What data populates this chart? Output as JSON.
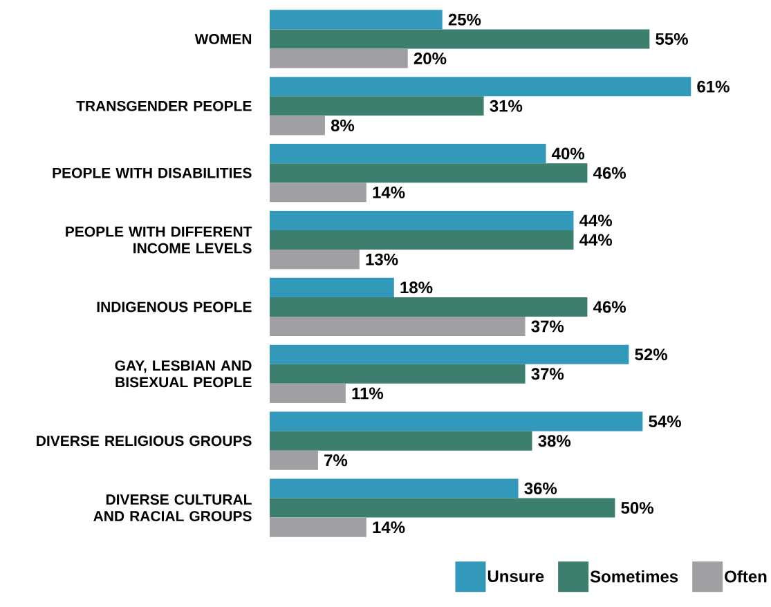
{
  "chart_data": {
    "type": "bar",
    "orientation": "horizontal",
    "legend": "bottom right",
    "categories": [
      "WOMEN",
      "TRANSGENDER PEOPLE",
      "PEOPLE WITH DISABILITIES",
      "PEOPLE WITH DIFFERENT INCOME LEVELS",
      "INDIGENOUS PEOPLE",
      "GAY, LESBIAN AND BISEXUAL PEOPLE",
      "DIVERSE RELIGIOUS GROUPS",
      "DIVERSE CULTURAL AND RACIAL GROUPS"
    ],
    "series": [
      {
        "name": "Unsure",
        "color": "#3399bb",
        "values": [
          25,
          61,
          40,
          44,
          18,
          52,
          54,
          36
        ],
        "value_labels": [
          "25%",
          "61%",
          "40%",
          "44%",
          "18%",
          "52%",
          "54%",
          "36%"
        ]
      },
      {
        "name": "Sometimes",
        "color": "#3d7f6e",
        "values": [
          55,
          31,
          46,
          44,
          46,
          37,
          38,
          50
        ],
        "value_labels": [
          "55%",
          "31%",
          "46%",
          "44%",
          "46%",
          "37%",
          "38%",
          "50%"
        ]
      },
      {
        "name": "Often",
        "color": "#a0a0a4",
        "values": [
          20,
          8,
          14,
          13,
          37,
          11,
          7,
          14
        ],
        "value_labels": [
          "20%",
          "8%",
          "14%",
          "13%",
          "37%",
          "11%",
          "7%",
          "14%"
        ]
      }
    ]
  }
}
